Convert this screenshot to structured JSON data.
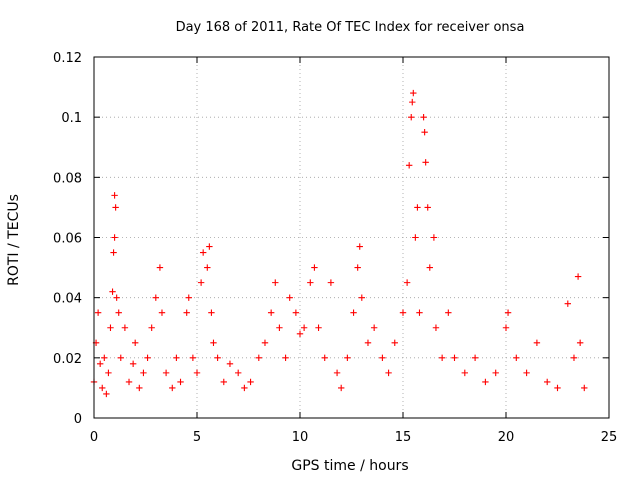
{
  "chart_data": {
    "type": "scatter",
    "title": "Day 168 of 2011, Rate Of TEC Index for receiver onsa",
    "xlabel": "GPS time / hours",
    "ylabel": "ROTI / TECUs",
    "xlim": [
      0,
      25
    ],
    "ylim": [
      0,
      0.12
    ],
    "x_ticks": [
      0,
      5,
      10,
      15,
      20,
      25
    ],
    "x_tick_labels": [
      "0",
      "5",
      "10",
      "15",
      "20",
      "25"
    ],
    "y_ticks": [
      0,
      0.02,
      0.04,
      0.06,
      0.08,
      0.1,
      0.12
    ],
    "y_tick_labels": [
      "0",
      "0.02",
      "0.04",
      "0.06",
      "0.08",
      "0.1",
      "0.12"
    ],
    "grid": true,
    "marker": "+",
    "color": "#ff0000",
    "series": [
      {
        "values": [
          [
            0.0,
            0.012
          ],
          [
            0.1,
            0.025
          ],
          [
            0.2,
            0.035
          ],
          [
            0.3,
            0.018
          ],
          [
            0.4,
            0.01
          ],
          [
            0.5,
            0.02
          ],
          [
            0.6,
            0.008
          ],
          [
            0.7,
            0.015
          ],
          [
            0.8,
            0.03
          ],
          [
            0.9,
            0.042
          ],
          [
            1.0,
            0.074
          ],
          [
            1.05,
            0.07
          ],
          [
            1.0,
            0.06
          ],
          [
            0.95,
            0.055
          ],
          [
            1.1,
            0.04
          ],
          [
            1.2,
            0.035
          ],
          [
            1.3,
            0.02
          ],
          [
            1.5,
            0.03
          ],
          [
            1.7,
            0.012
          ],
          [
            1.9,
            0.018
          ],
          [
            2.0,
            0.025
          ],
          [
            2.2,
            0.01
          ],
          [
            2.4,
            0.015
          ],
          [
            2.6,
            0.02
          ],
          [
            2.8,
            0.03
          ],
          [
            3.0,
            0.04
          ],
          [
            3.2,
            0.05
          ],
          [
            3.3,
            0.035
          ],
          [
            3.5,
            0.015
          ],
          [
            3.8,
            0.01
          ],
          [
            4.0,
            0.02
          ],
          [
            4.2,
            0.012
          ],
          [
            4.5,
            0.035
          ],
          [
            4.6,
            0.04
          ],
          [
            4.8,
            0.02
          ],
          [
            5.0,
            0.015
          ],
          [
            5.2,
            0.045
          ],
          [
            5.3,
            0.055
          ],
          [
            5.5,
            0.05
          ],
          [
            5.6,
            0.057
          ],
          [
            5.7,
            0.035
          ],
          [
            5.8,
            0.025
          ],
          [
            6.0,
            0.02
          ],
          [
            6.3,
            0.012
          ],
          [
            6.6,
            0.018
          ],
          [
            7.0,
            0.015
          ],
          [
            7.3,
            0.01
          ],
          [
            7.6,
            0.012
          ],
          [
            8.0,
            0.02
          ],
          [
            8.3,
            0.025
          ],
          [
            8.6,
            0.035
          ],
          [
            8.8,
            0.045
          ],
          [
            9.0,
            0.03
          ],
          [
            9.3,
            0.02
          ],
          [
            9.5,
            0.04
          ],
          [
            9.8,
            0.035
          ],
          [
            10.0,
            0.028
          ],
          [
            10.2,
            0.03
          ],
          [
            10.5,
            0.045
          ],
          [
            10.7,
            0.05
          ],
          [
            10.9,
            0.03
          ],
          [
            11.2,
            0.02
          ],
          [
            11.5,
            0.045
          ],
          [
            11.8,
            0.015
          ],
          [
            12.0,
            0.01
          ],
          [
            12.3,
            0.02
          ],
          [
            12.6,
            0.035
          ],
          [
            12.8,
            0.05
          ],
          [
            12.9,
            0.057
          ],
          [
            13.0,
            0.04
          ],
          [
            13.3,
            0.025
          ],
          [
            13.6,
            0.03
          ],
          [
            14.0,
            0.02
          ],
          [
            14.3,
            0.015
          ],
          [
            14.6,
            0.025
          ],
          [
            15.0,
            0.035
          ],
          [
            15.2,
            0.045
          ],
          [
            15.3,
            0.084
          ],
          [
            15.4,
            0.1
          ],
          [
            15.45,
            0.105
          ],
          [
            15.5,
            0.108
          ],
          [
            15.6,
            0.06
          ],
          [
            15.7,
            0.07
          ],
          [
            15.8,
            0.035
          ],
          [
            16.0,
            0.1
          ],
          [
            16.05,
            0.095
          ],
          [
            16.1,
            0.085
          ],
          [
            16.2,
            0.07
          ],
          [
            16.3,
            0.05
          ],
          [
            16.5,
            0.06
          ],
          [
            16.6,
            0.03
          ],
          [
            16.9,
            0.02
          ],
          [
            17.2,
            0.035
          ],
          [
            17.5,
            0.02
          ],
          [
            18.0,
            0.015
          ],
          [
            18.5,
            0.02
          ],
          [
            19.0,
            0.012
          ],
          [
            19.5,
            0.015
          ],
          [
            20.0,
            0.03
          ],
          [
            20.1,
            0.035
          ],
          [
            20.5,
            0.02
          ],
          [
            21.0,
            0.015
          ],
          [
            21.5,
            0.025
          ],
          [
            22.0,
            0.012
          ],
          [
            22.5,
            0.01
          ],
          [
            23.0,
            0.038
          ],
          [
            23.3,
            0.02
          ],
          [
            23.5,
            0.047
          ],
          [
            23.6,
            0.025
          ],
          [
            23.8,
            0.01
          ]
        ]
      }
    ]
  }
}
